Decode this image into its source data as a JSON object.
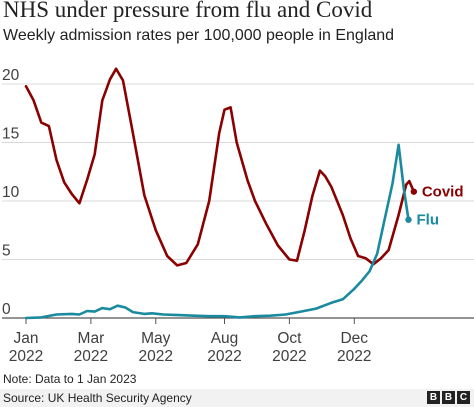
{
  "title": "NHS under pressure from flu and Covid",
  "subtitle": "Weekly admission rates per 100,000 people in England",
  "footer": {
    "note": "Note: Data to 1 Jan 2023",
    "source": "Source: UK Health Security Agency",
    "logo_letters": [
      "B",
      "B",
      "C"
    ]
  },
  "colors": {
    "covid": "#8b0000",
    "flu": "#1a8a9e",
    "grid": "#d9d9d9",
    "axis": "#555555"
  },
  "chart_data": {
    "type": "line",
    "ylim": [
      0,
      20
    ],
    "yticks": [
      0,
      5,
      10,
      15,
      20
    ],
    "xlim": [
      0,
      52
    ],
    "xticks": [
      {
        "week": 0,
        "month": "Jan",
        "year": "2022"
      },
      {
        "week": 8.5,
        "month": "Mar",
        "year": "2022"
      },
      {
        "week": 17,
        "month": "May",
        "year": "2022"
      },
      {
        "week": 26,
        "month": "Aug",
        "year": "2022"
      },
      {
        "week": 34.5,
        "month": "Oct",
        "year": "2022"
      },
      {
        "week": 43,
        "month": "Dec",
        "year": "2022"
      }
    ],
    "grid": true,
    "series": [
      {
        "name": "Covid",
        "color": "#8b0000",
        "points": [
          [
            0,
            19.8
          ],
          [
            1,
            18.6
          ],
          [
            2,
            16.7
          ],
          [
            3,
            16.4
          ],
          [
            4,
            13.5
          ],
          [
            5,
            11.6
          ],
          [
            6,
            10.6
          ],
          [
            7,
            9.8
          ],
          [
            8,
            11.8
          ],
          [
            9,
            14.0
          ],
          [
            10,
            18.6
          ],
          [
            11,
            20.4
          ],
          [
            11.8,
            21.3
          ],
          [
            12.7,
            20.3
          ],
          [
            14,
            15.8
          ],
          [
            15.5,
            10.5
          ],
          [
            17,
            7.5
          ],
          [
            18.5,
            5.3
          ],
          [
            19.8,
            4.5
          ],
          [
            21,
            4.7
          ],
          [
            22.5,
            6.3
          ],
          [
            24,
            10.0
          ],
          [
            25.3,
            15.8
          ],
          [
            26,
            17.8
          ],
          [
            26.8,
            18.0
          ],
          [
            27.6,
            15.0
          ],
          [
            29,
            11.8
          ],
          [
            30,
            10.0
          ],
          [
            31.5,
            8.0
          ],
          [
            33,
            6.2
          ],
          [
            34.5,
            5.0
          ],
          [
            35.5,
            4.9
          ],
          [
            36.5,
            7.5
          ],
          [
            37.5,
            10.4
          ],
          [
            38.5,
            12.6
          ],
          [
            39.2,
            12.1
          ],
          [
            40,
            11.2
          ],
          [
            41.5,
            8.8
          ],
          [
            42.5,
            6.8
          ],
          [
            43.5,
            5.3
          ],
          [
            44.5,
            5.1
          ],
          [
            45.5,
            4.6
          ],
          [
            46.5,
            5.1
          ],
          [
            47.5,
            5.8
          ],
          [
            48.8,
            8.8
          ],
          [
            49.8,
            11.4
          ],
          [
            50.2,
            11.7
          ],
          [
            50.8,
            10.8
          ]
        ]
      },
      {
        "name": "Flu",
        "color": "#1a8a9e",
        "points": [
          [
            0,
            0.0
          ],
          [
            2,
            0.05
          ],
          [
            4,
            0.3
          ],
          [
            6,
            0.35
          ],
          [
            7,
            0.3
          ],
          [
            8,
            0.6
          ],
          [
            9,
            0.55
          ],
          [
            10,
            0.85
          ],
          [
            11,
            0.75
          ],
          [
            12,
            1.05
          ],
          [
            13,
            0.9
          ],
          [
            14,
            0.5
          ],
          [
            15.5,
            0.35
          ],
          [
            16.5,
            0.4
          ],
          [
            18,
            0.3
          ],
          [
            20,
            0.25
          ],
          [
            22,
            0.2
          ],
          [
            24,
            0.15
          ],
          [
            26,
            0.15
          ],
          [
            28,
            0.05
          ],
          [
            30,
            0.15
          ],
          [
            32,
            0.2
          ],
          [
            34,
            0.3
          ],
          [
            36,
            0.55
          ],
          [
            38,
            0.8
          ],
          [
            40,
            1.3
          ],
          [
            41.5,
            1.6
          ],
          [
            43,
            2.5
          ],
          [
            44,
            3.2
          ],
          [
            45,
            4.0
          ],
          [
            46,
            5.5
          ],
          [
            47,
            8.5
          ],
          [
            48,
            11.5
          ],
          [
            48.8,
            14.8
          ],
          [
            49.5,
            11.0
          ],
          [
            50.1,
            8.4
          ]
        ]
      }
    ]
  }
}
